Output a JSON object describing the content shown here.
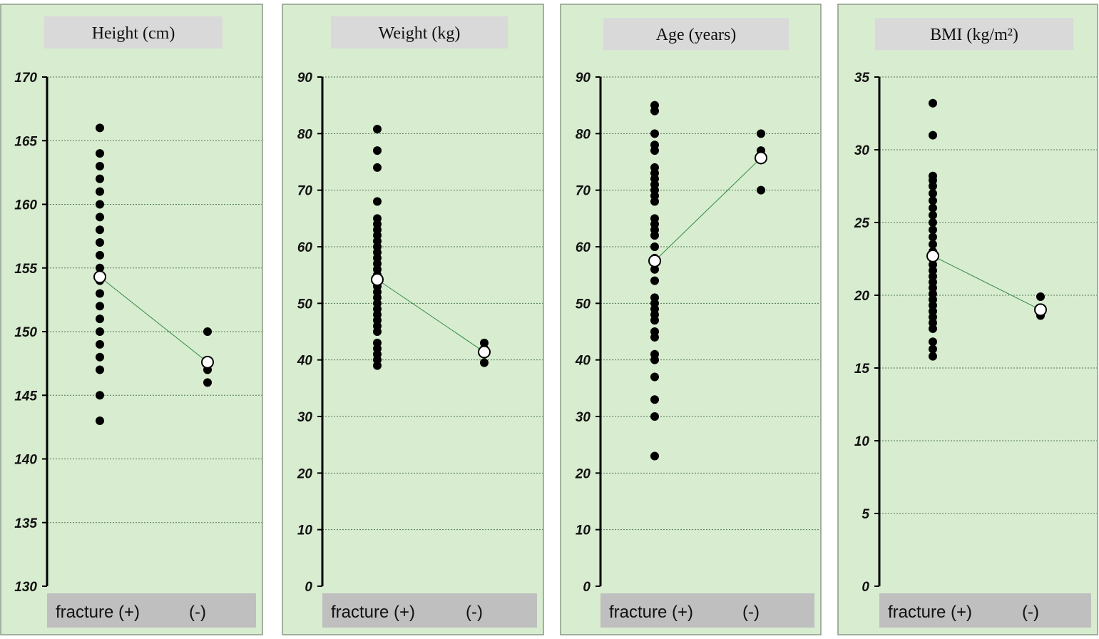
{
  "chart_data": [
    {
      "type": "scatter",
      "title": "Height (cm)",
      "categories": [
        "fracture (+)",
        "(-)"
      ],
      "ylim": [
        130,
        170
      ],
      "yticks": [
        130,
        135,
        140,
        145,
        150,
        155,
        160,
        165,
        170
      ],
      "grid": true,
      "series": [
        {
          "values": [
            [
              143,
              145,
              147,
              148,
              149,
              150,
              151,
              152,
              153,
              154,
              155,
              156,
              157,
              158,
              159,
              160,
              161,
              162,
              163,
              164,
              166
            ],
            [
              146,
              147,
              150
            ]
          ]
        }
      ],
      "means": [
        154.3,
        147.6
      ]
    },
    {
      "type": "scatter",
      "title": "Weight (kg)",
      "categories": [
        "fracture (+)",
        "(-)"
      ],
      "ylim": [
        0,
        90
      ],
      "yticks": [
        0,
        10,
        20,
        30,
        40,
        50,
        60,
        70,
        80,
        90
      ],
      "grid": true,
      "series": [
        {
          "values": [
            [
              39,
              40,
              41,
              42,
              43,
              45,
              46,
              47,
              48,
              49,
              50,
              51,
              52,
              53,
              54,
              55,
              56,
              57,
              58,
              59,
              60,
              61,
              62,
              63,
              64,
              65,
              68,
              74,
              77,
              80.8
            ],
            [
              39.5,
              41,
              42,
              43
            ]
          ]
        }
      ],
      "means": [
        54.2,
        41.4
      ]
    },
    {
      "type": "scatter",
      "title": "Age (years)",
      "categories": [
        "fracture (+)",
        "(-)"
      ],
      "ylim": [
        0,
        90
      ],
      "yticks": [
        0,
        10,
        20,
        30,
        40,
        50,
        60,
        70,
        80,
        90
      ],
      "grid": true,
      "series": [
        {
          "values": [
            [
              23,
              30,
              33,
              37,
              40,
              41,
              44,
              45,
              47,
              48,
              49,
              50,
              51,
              54,
              56,
              58,
              60,
              62,
              63,
              64,
              65,
              68,
              69,
              70,
              71,
              72,
              73,
              74,
              77,
              78,
              80,
              84,
              85
            ],
            [
              70,
              77,
              80
            ]
          ]
        }
      ],
      "means": [
        57.5,
        75.7
      ]
    },
    {
      "type": "scatter",
      "title": "BMI (kg/m²)",
      "categories": [
        "fracture (+)",
        "(-)"
      ],
      "ylim": [
        0,
        35
      ],
      "yticks": [
        0,
        5,
        10,
        15,
        20,
        25,
        30,
        35
      ],
      "grid": true,
      "series": [
        {
          "values": [
            [
              15.8,
              16.3,
              16.8,
              17.7,
              18.1,
              18.5,
              18.9,
              19.3,
              19.7,
              20.1,
              20.5,
              20.9,
              21.3,
              21.7,
              22.1,
              22.5,
              23,
              23.5,
              24,
              24.5,
              25,
              25.5,
              26,
              26.5,
              27,
              27.5,
              27.9,
              28.2,
              31,
              33.2
            ],
            [
              18.6,
              18.9,
              19.9
            ]
          ]
        }
      ],
      "means": [
        22.7,
        19.0
      ]
    }
  ]
}
